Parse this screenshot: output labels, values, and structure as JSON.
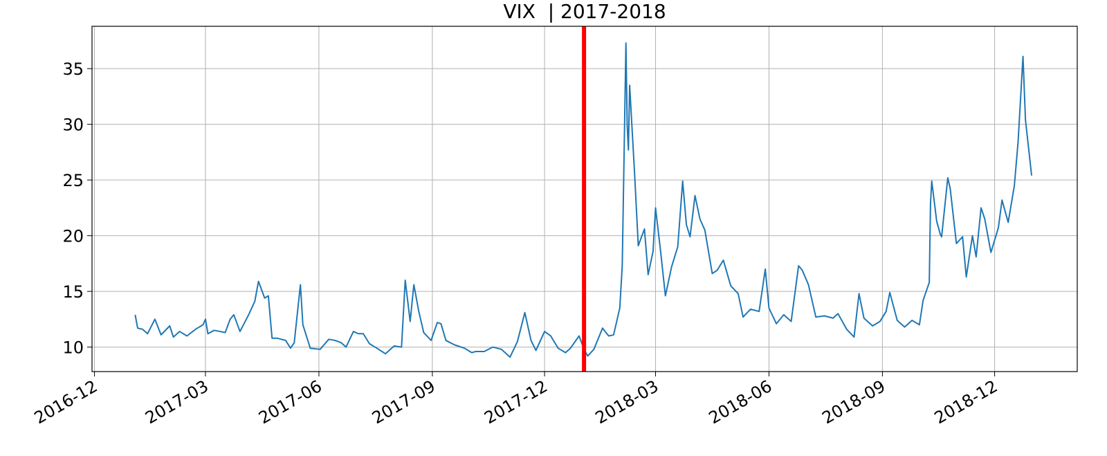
{
  "chart_data": {
    "type": "line",
    "title": "VIX  | 2017-2018",
    "x": [
      "2017-01-03",
      "2017-01-05",
      "2017-01-09",
      "2017-01-13",
      "2017-01-19",
      "2017-01-24",
      "2017-01-31",
      "2017-02-03",
      "2017-02-08",
      "2017-02-14",
      "2017-02-21",
      "2017-02-27",
      "2017-03-01",
      "2017-03-03",
      "2017-03-08",
      "2017-03-13",
      "2017-03-17",
      "2017-03-21",
      "2017-03-24",
      "2017-03-29",
      "2017-04-05",
      "2017-04-10",
      "2017-04-13",
      "2017-04-18",
      "2017-04-21",
      "2017-04-24",
      "2017-04-28",
      "2017-05-05",
      "2017-05-09",
      "2017-05-12",
      "2017-05-17",
      "2017-05-19",
      "2017-05-25",
      "2017-06-02",
      "2017-06-09",
      "2017-06-14",
      "2017-06-19",
      "2017-06-23",
      "2017-06-29",
      "2017-07-03",
      "2017-07-07",
      "2017-07-12",
      "2017-07-18",
      "2017-07-25",
      "2017-08-01",
      "2017-08-07",
      "2017-08-10",
      "2017-08-14",
      "2017-08-17",
      "2017-08-21",
      "2017-08-25",
      "2017-08-31",
      "2017-09-05",
      "2017-09-08",
      "2017-09-12",
      "2017-09-19",
      "2017-09-27",
      "2017-10-03",
      "2017-10-06",
      "2017-10-13",
      "2017-10-20",
      "2017-10-27",
      "2017-11-03",
      "2017-11-09",
      "2017-11-15",
      "2017-11-20",
      "2017-11-24",
      "2017-12-01",
      "2017-12-06",
      "2017-12-12",
      "2017-12-18",
      "2017-12-22",
      "2017-12-29",
      "2018-01-02",
      "2018-01-05",
      "2018-01-10",
      "2018-01-17",
      "2018-01-22",
      "2018-01-26",
      "2018-01-31",
      "2018-02-02",
      "2018-02-05",
      "2018-02-06",
      "2018-02-07",
      "2018-02-08",
      "2018-02-12",
      "2018-02-15",
      "2018-02-20",
      "2018-02-23",
      "2018-02-27",
      "2018-03-01",
      "2018-03-05",
      "2018-03-09",
      "2018-03-14",
      "2018-03-19",
      "2018-03-23",
      "2018-03-26",
      "2018-03-29",
      "2018-04-02",
      "2018-04-06",
      "2018-04-10",
      "2018-04-16",
      "2018-04-20",
      "2018-04-25",
      "2018-05-01",
      "2018-05-07",
      "2018-05-11",
      "2018-05-17",
      "2018-05-24",
      "2018-05-29",
      "2018-06-01",
      "2018-06-07",
      "2018-06-13",
      "2018-06-19",
      "2018-06-25",
      "2018-06-28",
      "2018-07-03",
      "2018-07-09",
      "2018-07-16",
      "2018-07-23",
      "2018-07-27",
      "2018-08-03",
      "2018-08-09",
      "2018-08-13",
      "2018-08-17",
      "2018-08-24",
      "2018-08-30",
      "2018-09-04",
      "2018-09-07",
      "2018-09-13",
      "2018-09-19",
      "2018-09-25",
      "2018-10-01",
      "2018-10-04",
      "2018-10-09",
      "2018-10-10",
      "2018-10-11",
      "2018-10-15",
      "2018-10-18",
      "2018-10-19",
      "2018-10-24",
      "2018-10-26",
      "2018-10-31",
      "2018-11-05",
      "2018-11-08",
      "2018-11-13",
      "2018-11-16",
      "2018-11-20",
      "2018-11-23",
      "2018-11-28",
      "2018-12-04",
      "2018-12-07",
      "2018-12-12",
      "2018-12-17",
      "2018-12-20",
      "2018-12-24",
      "2018-12-26",
      "2018-12-31"
    ],
    "series": [
      {
        "color": "#1f77b4",
        "values": [
          12.9,
          11.7,
          11.6,
          11.2,
          12.5,
          11.1,
          11.9,
          10.9,
          11.4,
          11.0,
          11.6,
          12.0,
          12.5,
          11.2,
          11.5,
          11.4,
          11.3,
          12.5,
          12.9,
          11.4,
          12.9,
          14.1,
          15.9,
          14.4,
          14.6,
          10.8,
          10.8,
          10.6,
          9.9,
          10.4,
          15.6,
          12.0,
          9.9,
          9.8,
          10.7,
          10.6,
          10.4,
          10.0,
          11.4,
          11.2,
          11.2,
          10.3,
          9.9,
          9.4,
          10.1,
          10.0,
          16.0,
          12.3,
          15.6,
          13.2,
          11.3,
          10.6,
          12.2,
          12.1,
          10.6,
          10.2,
          9.9,
          9.5,
          9.6,
          9.6,
          10.0,
          9.8,
          9.1,
          10.5,
          13.1,
          10.6,
          9.7,
          11.4,
          11.0,
          9.9,
          9.5,
          9.9,
          11.0,
          9.8,
          9.2,
          9.8,
          11.7,
          11.0,
          11.1,
          13.5,
          17.3,
          37.3,
          29.9,
          27.7,
          33.5,
          25.6,
          19.1,
          20.6,
          16.5,
          18.6,
          22.5,
          18.7,
          14.6,
          17.2,
          19.0,
          24.9,
          21.0,
          19.9,
          23.6,
          21.5,
          20.5,
          16.6,
          16.9,
          17.8,
          15.5,
          14.8,
          12.7,
          13.4,
          13.2,
          17.0,
          13.5,
          12.1,
          12.9,
          12.3,
          17.3,
          16.9,
          15.6,
          12.7,
          12.8,
          12.6,
          13.0,
          11.6,
          10.9,
          14.8,
          12.6,
          11.9,
          12.3,
          13.2,
          14.9,
          12.4,
          11.8,
          12.4,
          12.0,
          14.2,
          15.8,
          22.9,
          24.9,
          21.3,
          20.1,
          19.9,
          25.2,
          24.2,
          19.3,
          19.9,
          16.3,
          20.0,
          18.1,
          22.5,
          21.5,
          18.5,
          20.7,
          23.2,
          21.2,
          24.5,
          28.4,
          36.1,
          30.4,
          25.4
        ]
      }
    ],
    "vline": {
      "x": "2018-01-02",
      "color": "#ff0000"
    },
    "xlim": [
      "2016-11-29",
      "2019-02-06"
    ],
    "xticks": [
      "2016-12",
      "2017-03",
      "2017-06",
      "2017-09",
      "2017-12",
      "2018-03",
      "2018-06",
      "2018-09",
      "2018-12"
    ],
    "ylim": [
      7.8,
      38.8
    ],
    "yticks": [
      10,
      15,
      20,
      25,
      30,
      35
    ],
    "grid": true
  }
}
